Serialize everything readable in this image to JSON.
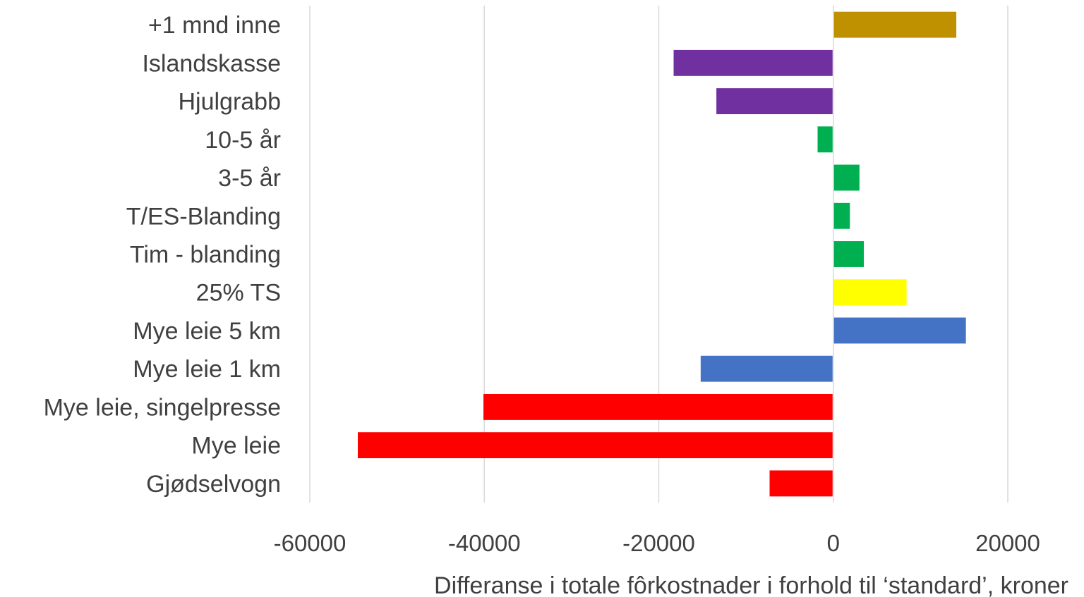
{
  "chart_data": {
    "type": "bar",
    "orientation": "horizontal",
    "title": "",
    "xlabel": "Differanse i totale fôrkostnader i  forhold til ‘standard’, kroner",
    "ylabel": "",
    "xlim": [
      -60000,
      20000
    ],
    "xticks": [
      -60000,
      -40000,
      -20000,
      0,
      20000
    ],
    "xtick_labels": [
      "-60000",
      "-40000",
      "-20000",
      "0",
      "20000"
    ],
    "grid": "vertical",
    "legend": "none",
    "categories": [
      "+1 mnd inne",
      "Islandskasse",
      "Hjulgrabb",
      "10-5 år",
      "3-5 år",
      "T/ES-Blanding",
      "Tim - blanding",
      "25% TS",
      "Mye leie 5 km",
      "Mye leie 1 km",
      "Mye leie, singelpresse",
      "Mye leie",
      "Gjødselvogn"
    ],
    "values": [
      14100,
      -18300,
      -13400,
      -1800,
      3000,
      1900,
      3500,
      8400,
      15200,
      -15200,
      -40100,
      -54500,
      -7300
    ],
    "colors": [
      "#bf9000",
      "#7030a0",
      "#7030a0",
      "#00b050",
      "#00b050",
      "#00b050",
      "#00b050",
      "#ffff00",
      "#4472c4",
      "#4472c4",
      "#ff0000",
      "#ff0000",
      "#ff0000"
    ]
  }
}
